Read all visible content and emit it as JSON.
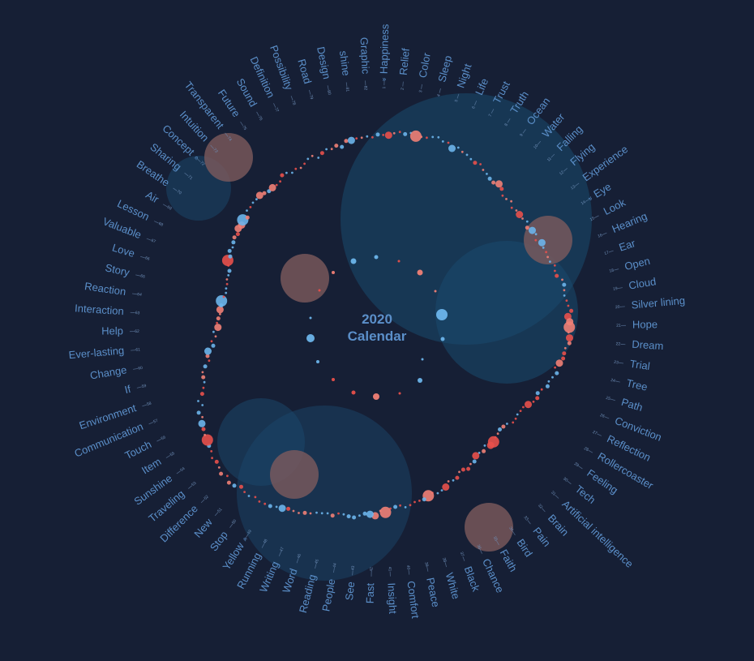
{
  "title": {
    "year": "2020",
    "subtitle": "Calendar"
  },
  "colors": {
    "background": "#161f35",
    "label": "#5b8fc9",
    "tick": "#6f8fb8",
    "dot_blue": "#6cb4ea",
    "dot_red": "#e8504b",
    "dot_salmon": "#f07f76",
    "bubble_blue": "#1a4a6e",
    "bubble_brown": "#7d5a5c"
  },
  "weeks": [
    {
      "n": 1,
      "label": "Happiness",
      "marker": true
    },
    {
      "n": 2,
      "label": "Relief"
    },
    {
      "n": 3,
      "label": "Color"
    },
    {
      "n": 4,
      "label": "Sleep"
    },
    {
      "n": 5,
      "label": "Night"
    },
    {
      "n": 6,
      "label": "Life"
    },
    {
      "n": 7,
      "label": "Trust"
    },
    {
      "n": 8,
      "label": "Truth"
    },
    {
      "n": 9,
      "label": "Ocean"
    },
    {
      "n": 10,
      "label": "Water"
    },
    {
      "n": 11,
      "label": "Falling"
    },
    {
      "n": 12,
      "label": "Flying"
    },
    {
      "n": 13,
      "label": "Experience"
    },
    {
      "n": 14,
      "label": "Eye",
      "marker": true
    },
    {
      "n": 15,
      "label": "Look"
    },
    {
      "n": 16,
      "label": "Hearing"
    },
    {
      "n": 17,
      "label": "Ear"
    },
    {
      "n": 18,
      "label": "Open"
    },
    {
      "n": 19,
      "label": "Cloud"
    },
    {
      "n": 20,
      "label": "Silver lining"
    },
    {
      "n": 21,
      "label": "Hope"
    },
    {
      "n": 22,
      "label": "Dream"
    },
    {
      "n": 23,
      "label": "Trial"
    },
    {
      "n": 24,
      "label": "Tree"
    },
    {
      "n": 25,
      "label": "Path"
    },
    {
      "n": 26,
      "label": "Conviction"
    },
    {
      "n": 27,
      "label": "Reflection"
    },
    {
      "n": 28,
      "label": "Rollercoaster"
    },
    {
      "n": 29,
      "label": "Feeling"
    },
    {
      "n": 30,
      "label": "Tech"
    },
    {
      "n": 31,
      "label": "Artificial intelligence"
    },
    {
      "n": 32,
      "label": "Brain"
    },
    {
      "n": 33,
      "label": "Pain"
    },
    {
      "n": 34,
      "label": "Bird"
    },
    {
      "n": 35,
      "label": "Faith"
    },
    {
      "n": 36,
      "label": "Chance"
    },
    {
      "n": 37,
      "label": "Black"
    },
    {
      "n": 38,
      "label": "White"
    },
    {
      "n": 39,
      "label": "Peace"
    },
    {
      "n": 40,
      "label": "Comfort"
    },
    {
      "n": 41,
      "label": "Insight"
    },
    {
      "n": 42,
      "label": "Fast"
    },
    {
      "n": 43,
      "label": "See"
    },
    {
      "n": 44,
      "label": "People"
    },
    {
      "n": 45,
      "label": "Reading"
    },
    {
      "n": 46,
      "label": "Word"
    },
    {
      "n": 47,
      "label": "Writing"
    },
    {
      "n": 48,
      "label": "Running"
    },
    {
      "n": 49,
      "label": "Yellow",
      "marker": true
    },
    {
      "n": 50,
      "label": "Stop"
    },
    {
      "n": 51,
      "label": "New"
    },
    {
      "n": 52,
      "label": "Difference"
    },
    {
      "n": 53,
      "label": "Traveling"
    },
    {
      "n": 54,
      "label": "Sunshine"
    },
    {
      "n": 55,
      "label": "Item"
    },
    {
      "n": 56,
      "label": "Touch"
    },
    {
      "n": 57,
      "label": "Communication"
    },
    {
      "n": 58,
      "label": "Environment"
    },
    {
      "n": 59,
      "label": "If"
    },
    {
      "n": 60,
      "label": "Change"
    },
    {
      "n": 61,
      "label": "Ever-lasting"
    },
    {
      "n": 62,
      "label": "Help"
    },
    {
      "n": 63,
      "label": "Interaction"
    },
    {
      "n": 64,
      "label": "Reaction"
    },
    {
      "n": 65,
      "label": "Story"
    },
    {
      "n": 66,
      "label": "Love"
    },
    {
      "n": 67,
      "label": "Valuable"
    },
    {
      "n": 68,
      "label": "Lesson"
    },
    {
      "n": 69,
      "label": "Air"
    },
    {
      "n": 70,
      "label": "Breathe"
    },
    {
      "n": 71,
      "label": "Sharing"
    },
    {
      "n": 72,
      "label": "Concept",
      "marker": true
    },
    {
      "n": 73,
      "label": "Intuition"
    },
    {
      "n": 74,
      "label": "Transparent"
    },
    {
      "n": 75,
      "label": "Future"
    },
    {
      "n": 76,
      "label": "Sound"
    },
    {
      "n": 77,
      "label": "Definition"
    },
    {
      "n": 78,
      "label": "Possibility"
    },
    {
      "n": 79,
      "label": "Road"
    },
    {
      "n": 80,
      "label": "Design"
    },
    {
      "n": 81,
      "label": "shine"
    },
    {
      "n": 82,
      "label": "Graphic"
    }
  ]
}
